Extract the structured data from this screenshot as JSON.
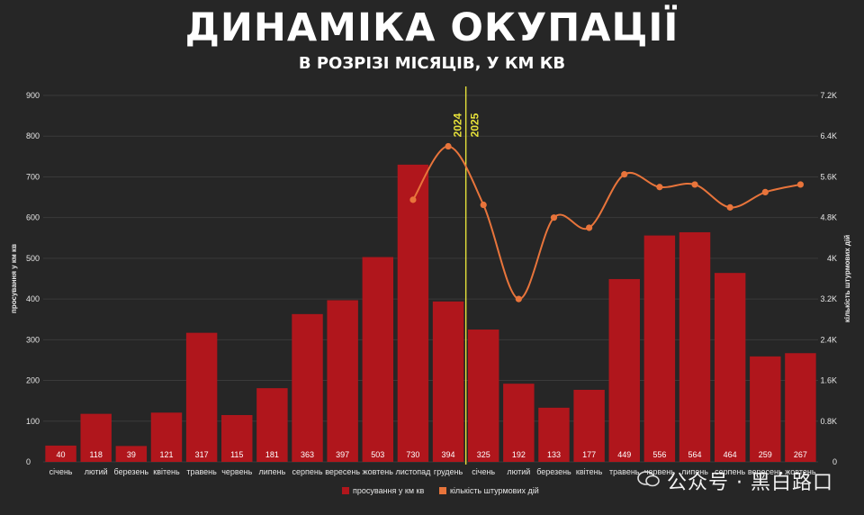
{
  "title": "ДИНАМІКА ОКУПАЦІЇ",
  "subtitle": "В РОЗРІЗІ МІСЯЦІВ, У КМ КВ",
  "watermark": "公众号 · 黑白路口",
  "chart_data": {
    "type": "bar",
    "categories": [
      "січень",
      "лютий",
      "березень",
      "квітень",
      "травень",
      "червень",
      "липень",
      "серпень",
      "вересень",
      "жовтень",
      "листопад",
      "грудень",
      "січень",
      "лютий",
      "березень",
      "квітень",
      "травень",
      "червень",
      "липень",
      "серпень",
      "вересень",
      "жовтень"
    ],
    "year_markers": {
      "label_left": "2024",
      "label_right": "2025",
      "after_index": 11
    },
    "ylabel_left": "просування у км кв",
    "ylabel_right": "кількість штурмових дій",
    "ylim_left": [
      0,
      900
    ],
    "ylim_right": [
      0,
      7200
    ],
    "left_ticks": [
      "0",
      "100",
      "200",
      "300",
      "400",
      "500",
      "600",
      "700",
      "800",
      "900"
    ],
    "right_ticks": [
      "0",
      "0.8K",
      "1.6K",
      "2.4K",
      "3.2K",
      "4K",
      "4.8K",
      "5.6K",
      "6.4K",
      "7.2K"
    ],
    "grid": true,
    "legend_position": "bottom",
    "series": [
      {
        "name": "просування у км кв",
        "type": "bar",
        "axis": "left",
        "color": "#b0161c",
        "values": [
          40,
          118,
          39,
          121,
          317,
          115,
          181,
          363,
          397,
          503,
          730,
          394,
          325,
          192,
          133,
          177,
          449,
          556,
          564,
          464,
          259,
          267
        ]
      },
      {
        "name": "кількість штурмових дій",
        "type": "line",
        "axis": "right",
        "color": "#e8743b",
        "values": [
          null,
          null,
          null,
          null,
          null,
          null,
          null,
          null,
          null,
          null,
          5150,
          6200,
          5050,
          3200,
          4800,
          4600,
          5650,
          5400,
          5450,
          5000,
          5300,
          5450
        ]
      }
    ],
    "year_line_color": "#e6e13a"
  }
}
